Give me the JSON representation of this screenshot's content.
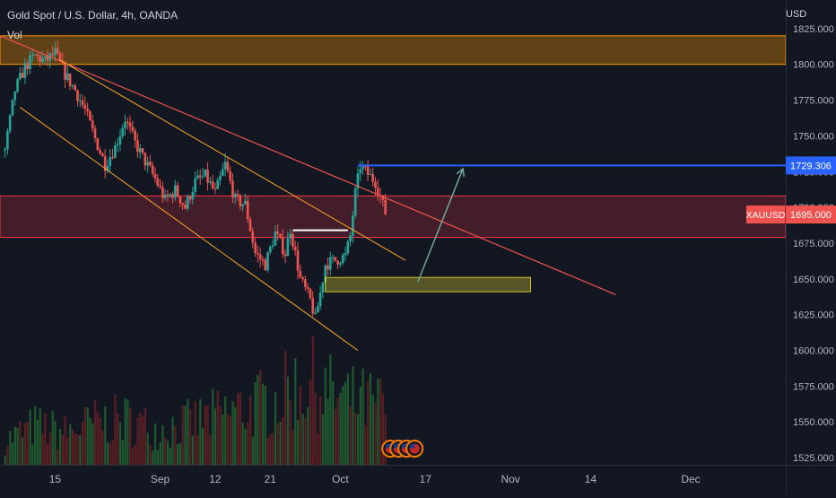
{
  "header": {
    "title": "Gold Spot / U.S. Dollar, 4h, OANDA",
    "indicator": "Vol"
  },
  "currency_label": "USD",
  "symbol_tag": "XAUUSD",
  "price_tag": "1695.000",
  "target_tag": "1729.306",
  "colors": {
    "background": "#131722",
    "up": "#26a69a",
    "down": "#ef5350",
    "up_volume": "#1f5a2e",
    "down_volume": "#5a1f24",
    "resistance_zone": "#ff9800",
    "support_zone": "#f23645",
    "demand_box": "#d4c830",
    "target_line": "#2962ff",
    "trendline": "#ef5350",
    "channel": "#ffa726",
    "arrow": "#6fa896"
  },
  "chart_data": {
    "type": "candlestick",
    "title": "Gold Spot / U.S. Dollar, 4h, OANDA",
    "y_unit": "USD",
    "ylim": [
      1520,
      1845
    ],
    "y_ticks": [
      "1825.000",
      "1800.000",
      "1775.000",
      "1750.000",
      "1725.000",
      "1700.000",
      "1675.000",
      "1650.000",
      "1625.000",
      "1600.000",
      "1575.000",
      "1550.000",
      "1525.000"
    ],
    "y_tick_values": [
      1825,
      1800,
      1775,
      1750,
      1725,
      1700,
      1675,
      1650,
      1625,
      1600,
      1575,
      1550,
      1525
    ],
    "x_ticks": [
      "15",
      "Sep",
      "12",
      "21",
      "Oct",
      "17",
      "Nov",
      "14",
      "Dec"
    ],
    "x_tick_bars": [
      10,
      31,
      42,
      53,
      67,
      84,
      101,
      117,
      137
    ],
    "x_range_bars": [
      -1,
      156
    ],
    "last_price": 1695.0,
    "price_path": [
      [
        0,
        1740
      ],
      [
        2,
        1782
      ],
      [
        4,
        1798
      ],
      [
        6,
        1806
      ],
      [
        8,
        1802
      ],
      [
        10,
        1808
      ],
      [
        12,
        1793
      ],
      [
        14,
        1782
      ],
      [
        16,
        1768
      ],
      [
        18,
        1748
      ],
      [
        20,
        1730
      ],
      [
        22,
        1742
      ],
      [
        24,
        1762
      ],
      [
        26,
        1745
      ],
      [
        28,
        1732
      ],
      [
        30,
        1720
      ],
      [
        32,
        1705
      ],
      [
        34,
        1712
      ],
      [
        36,
        1700
      ],
      [
        38,
        1718
      ],
      [
        40,
        1722
      ],
      [
        42,
        1710
      ],
      [
        44,
        1730
      ],
      [
        46,
        1705
      ],
      [
        48,
        1702
      ],
      [
        50,
        1668
      ],
      [
        52,
        1660
      ],
      [
        54,
        1682
      ],
      [
        56,
        1668
      ],
      [
        57,
        1685
      ],
      [
        59,
        1650
      ],
      [
        61,
        1635
      ],
      [
        62,
        1622
      ],
      [
        63,
        1640
      ],
      [
        64,
        1660
      ],
      [
        66,
        1663
      ],
      [
        68,
        1666
      ],
      [
        69,
        1680
      ],
      [
        70,
        1710
      ],
      [
        71,
        1729
      ],
      [
        72,
        1725
      ],
      [
        74,
        1718
      ],
      [
        75,
        1708
      ],
      [
        76,
        1695
      ]
    ],
    "volume_path": [
      [
        0,
        15
      ],
      [
        6,
        24
      ],
      [
        12,
        20
      ],
      [
        18,
        26
      ],
      [
        24,
        28
      ],
      [
        30,
        22
      ],
      [
        36,
        25
      ],
      [
        42,
        30
      ],
      [
        48,
        35
      ],
      [
        54,
        40
      ],
      [
        58,
        48
      ],
      [
        62,
        50
      ],
      [
        64,
        45
      ],
      [
        68,
        40
      ],
      [
        72,
        38
      ],
      [
        76,
        36
      ]
    ],
    "resistance_zone": [
      1800,
      1820
    ],
    "support_zone": [
      1679,
      1708
    ],
    "demand_box": {
      "bars": [
        64,
        105
      ],
      "price": [
        1641,
        1651
      ]
    },
    "target_level": {
      "bars": [
        70.5,
        156
      ],
      "price": 1729.306
    },
    "breakout_line": {
      "bars": [
        57.5,
        68.5
      ],
      "price": 1684
    },
    "trendline": [
      [
        -1,
        1820
      ],
      [
        122,
        1639
      ]
    ],
    "channel_upper": [
      [
        11,
        1803
      ],
      [
        80,
        1663
      ]
    ],
    "channel_lower": [
      [
        3,
        1770
      ],
      [
        70.5,
        1600
      ]
    ],
    "projection_arrow": [
      [
        82.5,
        1648
      ],
      [
        91.5,
        1727
      ]
    ],
    "event_icons_bar": 77,
    "event_icon_count": 4
  }
}
